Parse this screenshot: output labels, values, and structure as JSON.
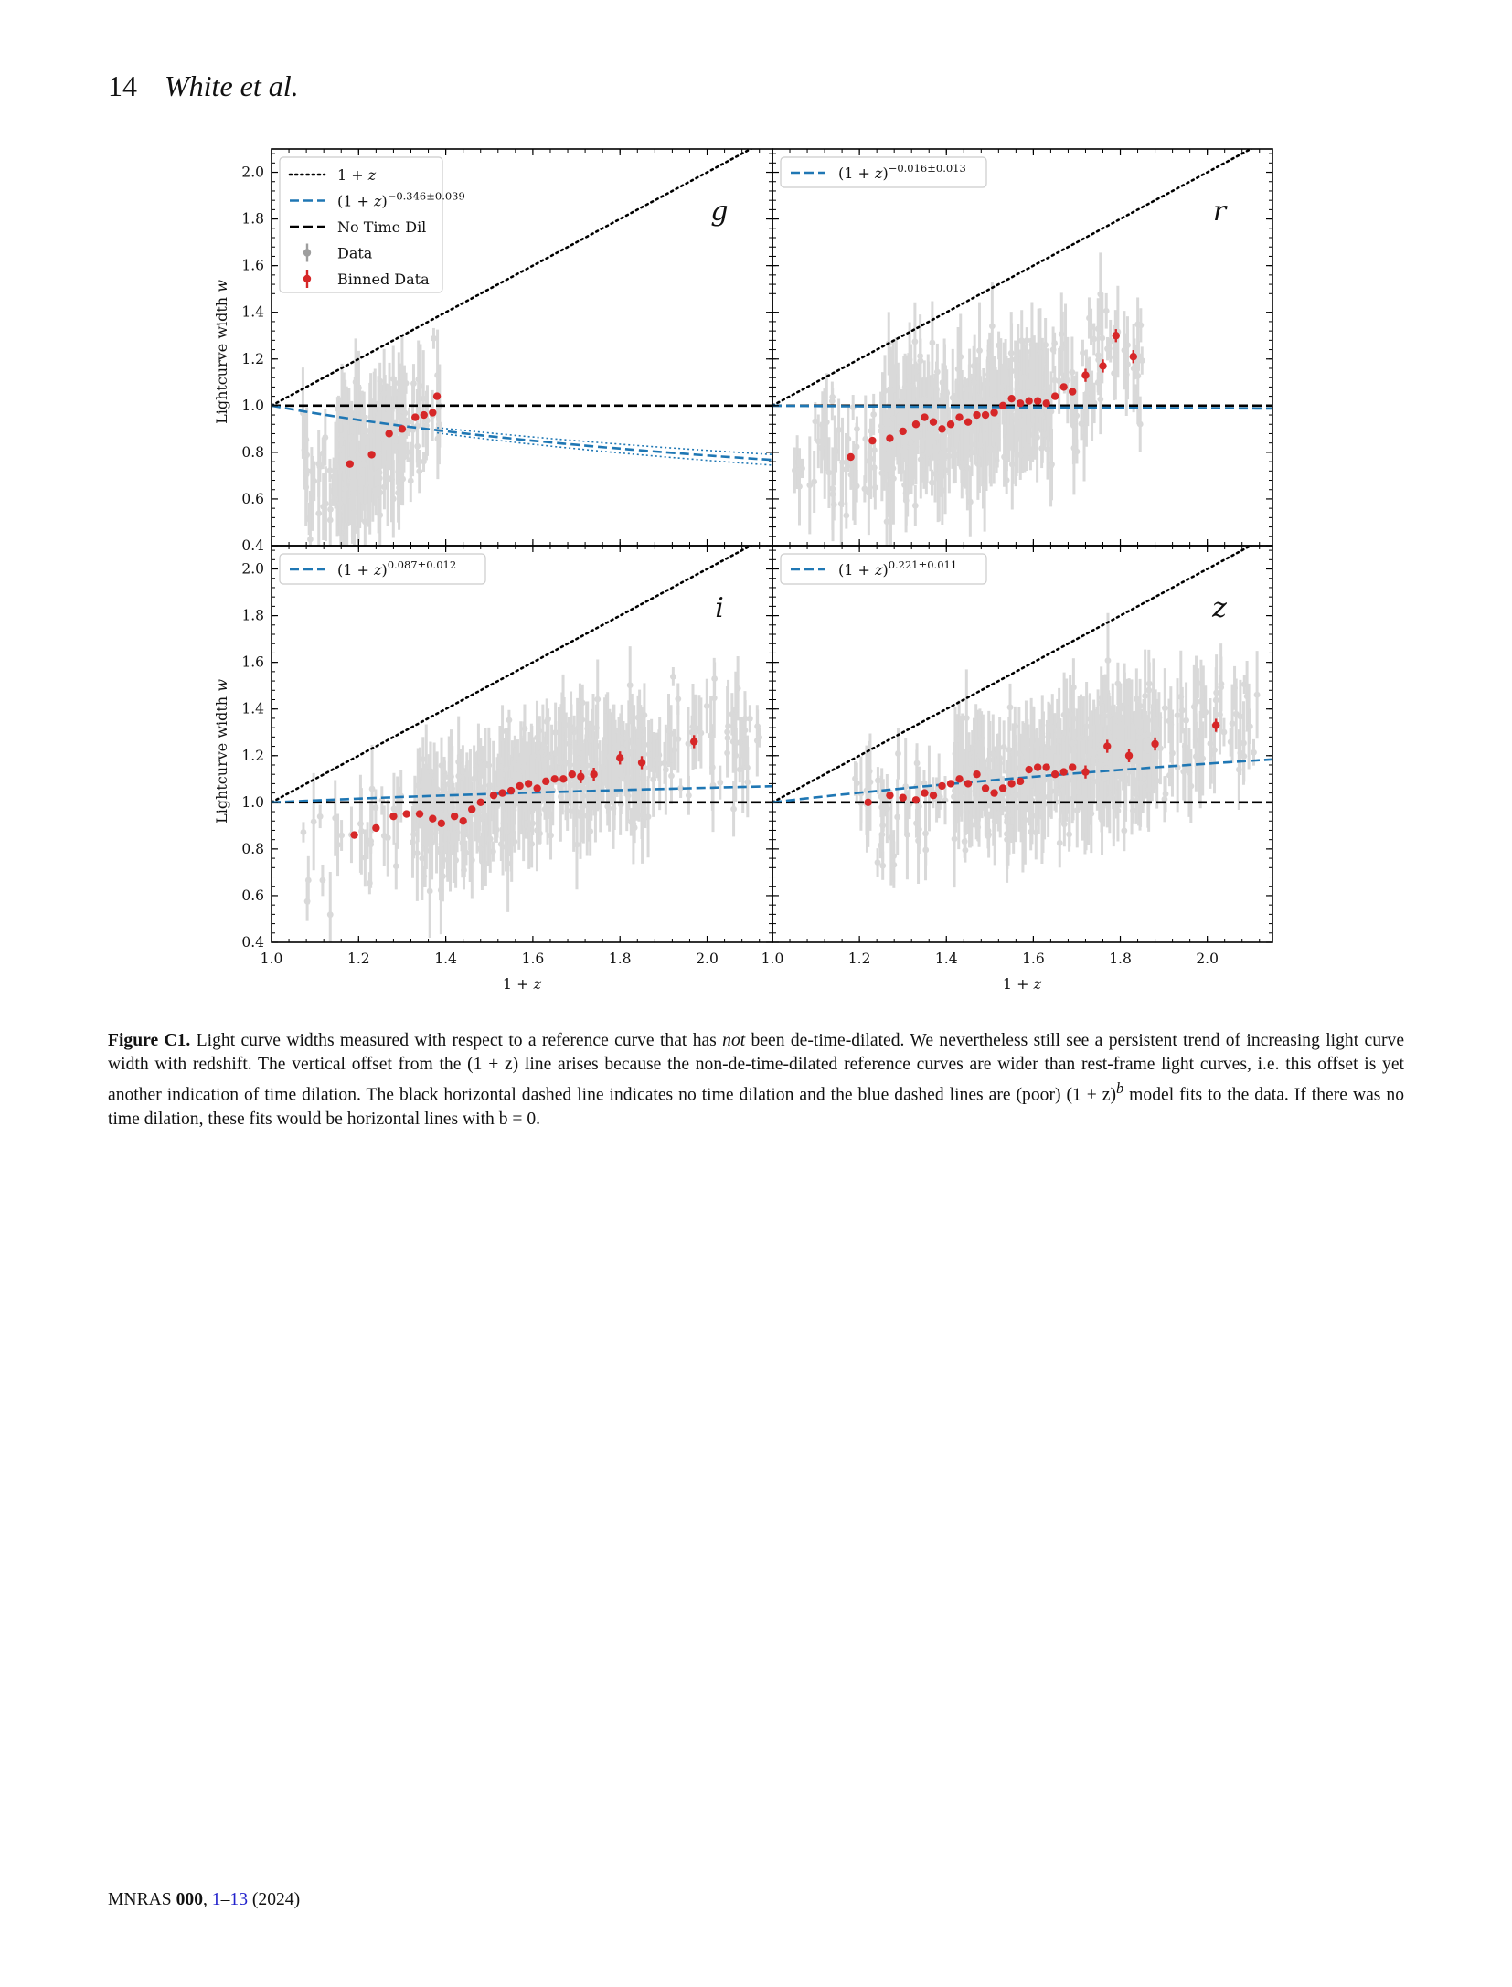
{
  "header": {
    "page_number": "14",
    "authors": "White et al."
  },
  "figure": {
    "y_axis_label": "Lightcurve width w",
    "x_axis_label": "1 + z",
    "legend": [
      {
        "label": "1 + z",
        "style": "dotted",
        "color": "#000000"
      },
      {
        "label": "(1 + z)^−0.346±0.039",
        "style": "dashed",
        "color": "#1f77b4"
      },
      {
        "label": "No Time Dil",
        "style": "dashed",
        "color": "#000000"
      },
      {
        "label": "Data",
        "style": "errorbar",
        "color": "#9e9e9e"
      },
      {
        "label": "Binned Data",
        "style": "errorbar",
        "color": "#d62728"
      }
    ]
  },
  "chart_data": [
    {
      "type": "scatter",
      "band": "g",
      "xlim": [
        1.0,
        2.15
      ],
      "ylim": [
        0.4,
        2.1
      ],
      "xticks": [
        "1.0",
        "1.2",
        "1.4",
        "1.6",
        "1.8",
        "2.0"
      ],
      "yticks": [
        "0.4",
        "0.6",
        "0.8",
        "1.0",
        "1.2",
        "1.4",
        "1.6",
        "1.8",
        "2.0"
      ],
      "fit_label": "(1 + z)−0.346±0.039",
      "fit_exponent": -0.346,
      "data_xrange": [
        1.07,
        1.39
      ],
      "binned": {
        "x": [
          1.18,
          1.23,
          1.27,
          1.3,
          1.33,
          1.35,
          1.37,
          1.38
        ],
        "y": [
          0.75,
          0.79,
          0.88,
          0.9,
          0.95,
          0.96,
          0.97,
          1.04
        ]
      }
    },
    {
      "type": "scatter",
      "band": "r",
      "xlim": [
        1.0,
        2.15
      ],
      "ylim": [
        0.4,
        2.1
      ],
      "xticks": [
        "1.0",
        "1.2",
        "1.4",
        "1.6",
        "1.8",
        "2.0"
      ],
      "yticks": [],
      "fit_label": "(1 + z)−0.016±0.013",
      "fit_exponent": -0.016,
      "data_xrange": [
        1.05,
        1.85
      ],
      "binned": {
        "x": [
          1.18,
          1.23,
          1.27,
          1.3,
          1.33,
          1.35,
          1.37,
          1.39,
          1.41,
          1.43,
          1.45,
          1.47,
          1.49,
          1.51,
          1.53,
          1.55,
          1.57,
          1.59,
          1.61,
          1.63,
          1.65,
          1.67,
          1.69,
          1.72,
          1.76,
          1.79,
          1.83
        ],
        "y": [
          0.78,
          0.85,
          0.86,
          0.89,
          0.92,
          0.95,
          0.93,
          0.9,
          0.92,
          0.95,
          0.93,
          0.96,
          0.96,
          0.97,
          1.0,
          1.03,
          1.01,
          1.02,
          1.02,
          1.01,
          1.04,
          1.08,
          1.06,
          1.13,
          1.17,
          1.3,
          1.21
        ]
      }
    },
    {
      "type": "scatter",
      "band": "i",
      "xlim": [
        1.0,
        2.15
      ],
      "ylim": [
        0.4,
        2.1
      ],
      "xticks": [
        "1.0",
        "1.2",
        "1.4",
        "1.6",
        "1.8",
        "2.0"
      ],
      "yticks": [
        "0.4",
        "0.6",
        "0.8",
        "1.0",
        "1.2",
        "1.4",
        "1.6",
        "1.8",
        "2.0"
      ],
      "fit_label": "(1 + z)0.087±0.012",
      "fit_exponent": 0.087,
      "data_xrange": [
        1.07,
        2.12
      ],
      "binned": {
        "x": [
          1.19,
          1.24,
          1.28,
          1.31,
          1.34,
          1.37,
          1.39,
          1.42,
          1.44,
          1.46,
          1.48,
          1.51,
          1.53,
          1.55,
          1.57,
          1.59,
          1.61,
          1.63,
          1.65,
          1.67,
          1.69,
          1.71,
          1.74,
          1.8,
          1.85,
          1.97
        ],
        "y": [
          0.86,
          0.89,
          0.94,
          0.95,
          0.95,
          0.93,
          0.91,
          0.94,
          0.92,
          0.97,
          1.0,
          1.03,
          1.04,
          1.05,
          1.07,
          1.08,
          1.06,
          1.09,
          1.1,
          1.1,
          1.12,
          1.11,
          1.12,
          1.19,
          1.17,
          1.26
        ]
      }
    },
    {
      "type": "scatter",
      "band": "z",
      "xlim": [
        1.0,
        2.15
      ],
      "ylim": [
        0.4,
        2.1
      ],
      "xticks": [
        "1.0",
        "1.2",
        "1.4",
        "1.6",
        "1.8",
        "2.0"
      ],
      "yticks": [],
      "fit_label": "(1 + z)0.221±0.011",
      "fit_exponent": 0.221,
      "data_xrange": [
        1.18,
        2.12
      ],
      "binned": {
        "x": [
          1.22,
          1.27,
          1.3,
          1.33,
          1.35,
          1.37,
          1.39,
          1.41,
          1.43,
          1.45,
          1.47,
          1.49,
          1.51,
          1.53,
          1.55,
          1.57,
          1.59,
          1.61,
          1.63,
          1.65,
          1.67,
          1.69,
          1.72,
          1.77,
          1.82,
          1.88,
          2.02
        ],
        "y": [
          1.0,
          1.03,
          1.02,
          1.01,
          1.04,
          1.03,
          1.07,
          1.08,
          1.1,
          1.08,
          1.12,
          1.06,
          1.04,
          1.06,
          1.08,
          1.09,
          1.14,
          1.15,
          1.15,
          1.12,
          1.13,
          1.15,
          1.13,
          1.24,
          1.2,
          1.25,
          1.33
        ]
      }
    }
  ],
  "caption": {
    "label": "Figure C1.",
    "text1": " Light curve widths measured with respect to a reference curve that has ",
    "emph": "not",
    "text2": " been de-time-dilated. We nevertheless still see a persistent trend of increasing light curve width with redshift. The vertical offset from the (1 + z) line arises because the non-de-time-dilated reference curves are wider than rest-frame light curves, i.e. this offset is yet another indication of time dilation. The black horizontal dashed line indicates no time dilation and the blue dashed lines are (poor) (1 + z)",
    "sup": "b",
    "text3": " model fits to the data. If there was no time dilation, these fits would be horizontal lines with b = 0."
  },
  "footer": {
    "journal": "MNRAS",
    "volume": "000",
    "sep": ", ",
    "page_start": "1",
    "dash": "–",
    "page_end": "13",
    "year": " (2024)"
  }
}
